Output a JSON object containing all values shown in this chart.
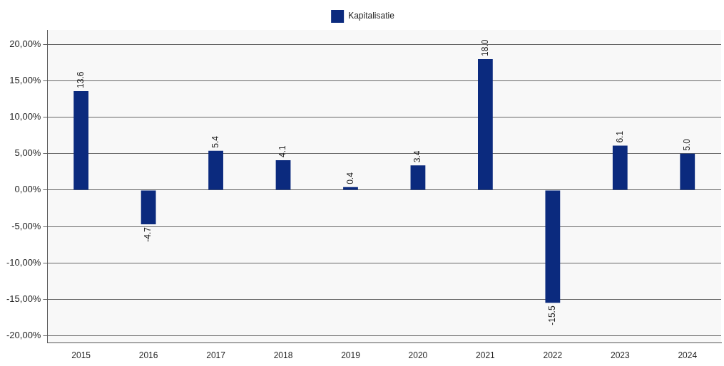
{
  "chart_data": {
    "type": "bar",
    "categories": [
      "2015",
      "2016",
      "2017",
      "2018",
      "2019",
      "2020",
      "2021",
      "2022",
      "2023",
      "2024"
    ],
    "series": [
      {
        "name": "Kapitalisatie",
        "color": "#0b2a7e",
        "values": [
          13.6,
          -4.7,
          5.4,
          4.1,
          0.4,
          3.4,
          18.0,
          -15.5,
          6.1,
          5.0
        ],
        "value_labels": [
          "13.6",
          "-4.7",
          "5.4",
          "4.1",
          "0.4",
          "3.4",
          "18.0",
          "-15.5",
          "6.1",
          "5.0"
        ]
      }
    ],
    "ylim": [
      -21,
      22
    ],
    "yticks": [
      {
        "value": -20,
        "label": "-20,00%"
      },
      {
        "value": -15,
        "label": "-15,00%"
      },
      {
        "value": -10,
        "label": "-10,00%"
      },
      {
        "value": -5,
        "label": "-5,00%"
      },
      {
        "value": 0,
        "label": "0,00%"
      },
      {
        "value": 5,
        "label": "5,00%"
      },
      {
        "value": 10,
        "label": "10,00%"
      },
      {
        "value": 15,
        "label": "15,00%"
      },
      {
        "value": 20,
        "label": "20,00%"
      }
    ],
    "grid": "y",
    "legend": "top"
  }
}
